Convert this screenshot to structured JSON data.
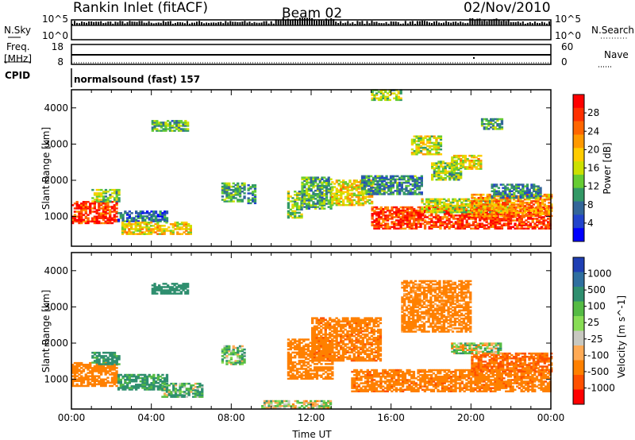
{
  "header": {
    "title": "Rankin Inlet (fitACF)",
    "beam": "Beam 02",
    "date": "02/Nov/2010"
  },
  "strips": {
    "nsky_label": "N.Sky",
    "nsky_ticks": [
      "10^5",
      "10^0"
    ],
    "nsearch_label": "N.Search",
    "nsearch_ticks": [
      "10^5",
      "10^0"
    ],
    "freq_label_1": "Freq.",
    "freq_label_2": "[MHz]",
    "freq_ticks": [
      "18",
      "8"
    ],
    "nave_label": "Nave",
    "nave_ticks": [
      "60",
      "0"
    ],
    "cpid_label": "CPID",
    "cpid_text": "normalsound (fast) 157"
  },
  "chart_data": [
    {
      "type": "heatmap",
      "panel": "power",
      "xlabel": "Time UT",
      "ylabel": "Slant Range [km]",
      "xlim": [
        0,
        24
      ],
      "ylim": [
        180,
        4500
      ],
      "x_ticks": [
        "00:00",
        "04:00",
        "08:00",
        "12:00",
        "16:00",
        "20:00",
        "00:00"
      ],
      "y_ticks": [
        1000,
        2000,
        3000,
        4000
      ],
      "colorbar": {
        "label": "Power [dB]",
        "ticks": [
          "28",
          "24",
          "20",
          "16",
          "12",
          "8",
          "4"
        ],
        "colors": [
          "#ff0000",
          "#ff3000",
          "#ff6600",
          "#ff9900",
          "#ffcc00",
          "#cce000",
          "#66cc33",
          "#339966",
          "#336699",
          "#2244cc",
          "#0000ff"
        ]
      },
      "regions": [
        {
          "t0": 0.0,
          "t1": 2.3,
          "r0": 800,
          "r1": 1400,
          "level": 26
        },
        {
          "t0": 1.0,
          "t1": 2.4,
          "r0": 1400,
          "r1": 1750,
          "level": 14
        },
        {
          "t0": 2.3,
          "t1": 4.8,
          "r0": 850,
          "r1": 1150,
          "level": 8
        },
        {
          "t0": 2.5,
          "t1": 6.0,
          "r0": 500,
          "r1": 850,
          "level": 18
        },
        {
          "t0": 4.0,
          "t1": 5.8,
          "r0": 3350,
          "r1": 3650,
          "level": 12
        },
        {
          "t0": 7.5,
          "t1": 8.6,
          "r0": 1400,
          "r1": 1900,
          "level": 12
        },
        {
          "t0": 8.8,
          "t1": 9.2,
          "r0": 1350,
          "r1": 1850,
          "level": 10
        },
        {
          "t0": 10.8,
          "t1": 11.5,
          "r0": 950,
          "r1": 1700,
          "level": 14
        },
        {
          "t0": 11.5,
          "t1": 13.0,
          "r0": 1200,
          "r1": 2100,
          "level": 12
        },
        {
          "t0": 13.0,
          "t1": 15.0,
          "r0": 1300,
          "r1": 2000,
          "level": 18
        },
        {
          "t0": 14.5,
          "t1": 17.5,
          "r0": 1600,
          "r1": 2100,
          "level": 10
        },
        {
          "t0": 15.0,
          "t1": 24.0,
          "r0": 650,
          "r1": 1250,
          "level": 26
        },
        {
          "t0": 17.5,
          "t1": 22.0,
          "r0": 1100,
          "r1": 1500,
          "level": 16
        },
        {
          "t0": 20.0,
          "t1": 24.0,
          "r0": 1000,
          "r1": 1600,
          "level": 22
        },
        {
          "t0": 18.0,
          "t1": 19.5,
          "r0": 2000,
          "r1": 2500,
          "level": 14
        },
        {
          "t0": 17.0,
          "t1": 18.5,
          "r0": 2700,
          "r1": 3200,
          "level": 16
        },
        {
          "t0": 19.0,
          "t1": 20.5,
          "r0": 2300,
          "r1": 2700,
          "level": 18
        },
        {
          "t0": 21.0,
          "t1": 23.5,
          "r0": 1500,
          "r1": 1900,
          "level": 10
        },
        {
          "t0": 20.5,
          "t1": 21.5,
          "r0": 3400,
          "r1": 3700,
          "level": 12
        },
        {
          "t0": 15.0,
          "t1": 16.5,
          "r0": 4200,
          "r1": 4500,
          "level": 14
        }
      ]
    },
    {
      "type": "heatmap",
      "panel": "velocity",
      "xlabel": "Time UT",
      "ylabel": "Slant Range [km]",
      "xlim": [
        0,
        24
      ],
      "ylim": [
        180,
        4500
      ],
      "x_ticks": [
        "00:00",
        "04:00",
        "08:00",
        "12:00",
        "16:00",
        "20:00",
        "00:00"
      ],
      "y_ticks": [
        1000,
        2000,
        3000,
        4000
      ],
      "colorbar": {
        "label": "Velocity [m s^-1]",
        "ticks": [
          "1000",
          "500",
          "100",
          "25",
          "-25",
          "-100",
          "-500",
          "-1000"
        ],
        "colors": [
          "#1f3fb4",
          "#2f6f9f",
          "#2f8f6f",
          "#55bb44",
          "#88dd55",
          "#c8c8c0",
          "#ffaa55",
          "#ff8000",
          "#ff5000",
          "#ff0000"
        ]
      },
      "regions": [
        {
          "t0": 0.0,
          "t1": 2.3,
          "r0": 800,
          "r1": 1450,
          "level": -300
        },
        {
          "t0": 1.0,
          "t1": 2.4,
          "r0": 1400,
          "r1": 1750,
          "level": 200
        },
        {
          "t0": 2.3,
          "t1": 4.8,
          "r0": 700,
          "r1": 1150,
          "level": 150
        },
        {
          "t0": 4.5,
          "t1": 6.5,
          "r0": 500,
          "r1": 900,
          "level": 80
        },
        {
          "t0": 4.0,
          "t1": 5.8,
          "r0": 3350,
          "r1": 3650,
          "level": 300
        },
        {
          "t0": 7.5,
          "t1": 8.6,
          "r0": 1400,
          "r1": 1900,
          "level": 60
        },
        {
          "t0": 10.8,
          "t1": 13.0,
          "r0": 1000,
          "r1": 2100,
          "level": -300
        },
        {
          "t0": 12.0,
          "t1": 15.5,
          "r0": 1500,
          "r1": 2700,
          "level": -400
        },
        {
          "t0": 14.0,
          "t1": 24.0,
          "r0": 650,
          "r1": 1250,
          "level": -400
        },
        {
          "t0": 20.0,
          "t1": 24.0,
          "r0": 1200,
          "r1": 1700,
          "level": -500
        },
        {
          "t0": 16.5,
          "t1": 20.0,
          "r0": 2300,
          "r1": 3700,
          "level": -200
        },
        {
          "t0": 19.0,
          "t1": 21.5,
          "r0": 1700,
          "r1": 2000,
          "level": 0
        },
        {
          "t0": 9.5,
          "t1": 13.0,
          "r0": 200,
          "r1": 400,
          "level": 0
        }
      ]
    }
  ]
}
